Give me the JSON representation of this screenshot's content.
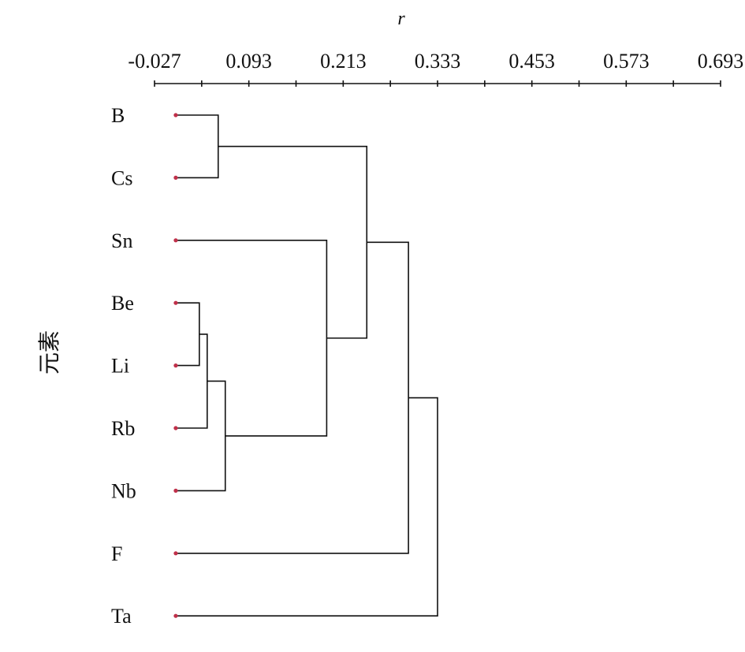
{
  "chart_data": {
    "type": "dendrogram",
    "title": "",
    "xlabel": "r",
    "ylabel": "元素",
    "xlim": [
      -0.027,
      0.693
    ],
    "x_ticks": [
      -0.027,
      0.033,
      0.093,
      0.153,
      0.213,
      0.273,
      0.333,
      0.393,
      0.453,
      0.513,
      0.573,
      0.633,
      0.693
    ],
    "x_tick_labels": [
      "-0.027",
      "0.093",
      "0.213",
      "0.333",
      "0.453",
      "0.573",
      "0.693"
    ],
    "x_tick_label_values": [
      -0.027,
      0.093,
      0.213,
      0.333,
      0.453,
      0.573,
      0.693
    ],
    "leaves": [
      "B",
      "Cs",
      "Sn",
      "Be",
      "Li",
      "Rb",
      "Nb",
      "F",
      "Ta"
    ],
    "leaf_marker_color": "#c0304a",
    "line_color": "#111111",
    "merges": [
      {
        "id": "m1",
        "children": [
          "Be",
          "Li"
        ],
        "height": 0.03
      },
      {
        "id": "m2",
        "children": [
          "m1",
          "Rb"
        ],
        "height": 0.04
      },
      {
        "id": "m3",
        "children": [
          "B",
          "Cs"
        ],
        "height": 0.054
      },
      {
        "id": "m4",
        "children": [
          "m2",
          "Nb"
        ],
        "height": 0.063
      },
      {
        "id": "m5",
        "children": [
          "Sn",
          "m4"
        ],
        "height": 0.192
      },
      {
        "id": "m6",
        "children": [
          "m3",
          "m5"
        ],
        "height": 0.243
      },
      {
        "id": "m7",
        "children": [
          "m6",
          "F"
        ],
        "height": 0.296
      },
      {
        "id": "m8",
        "children": [
          "m7",
          "Ta"
        ],
        "height": 0.333
      }
    ]
  }
}
